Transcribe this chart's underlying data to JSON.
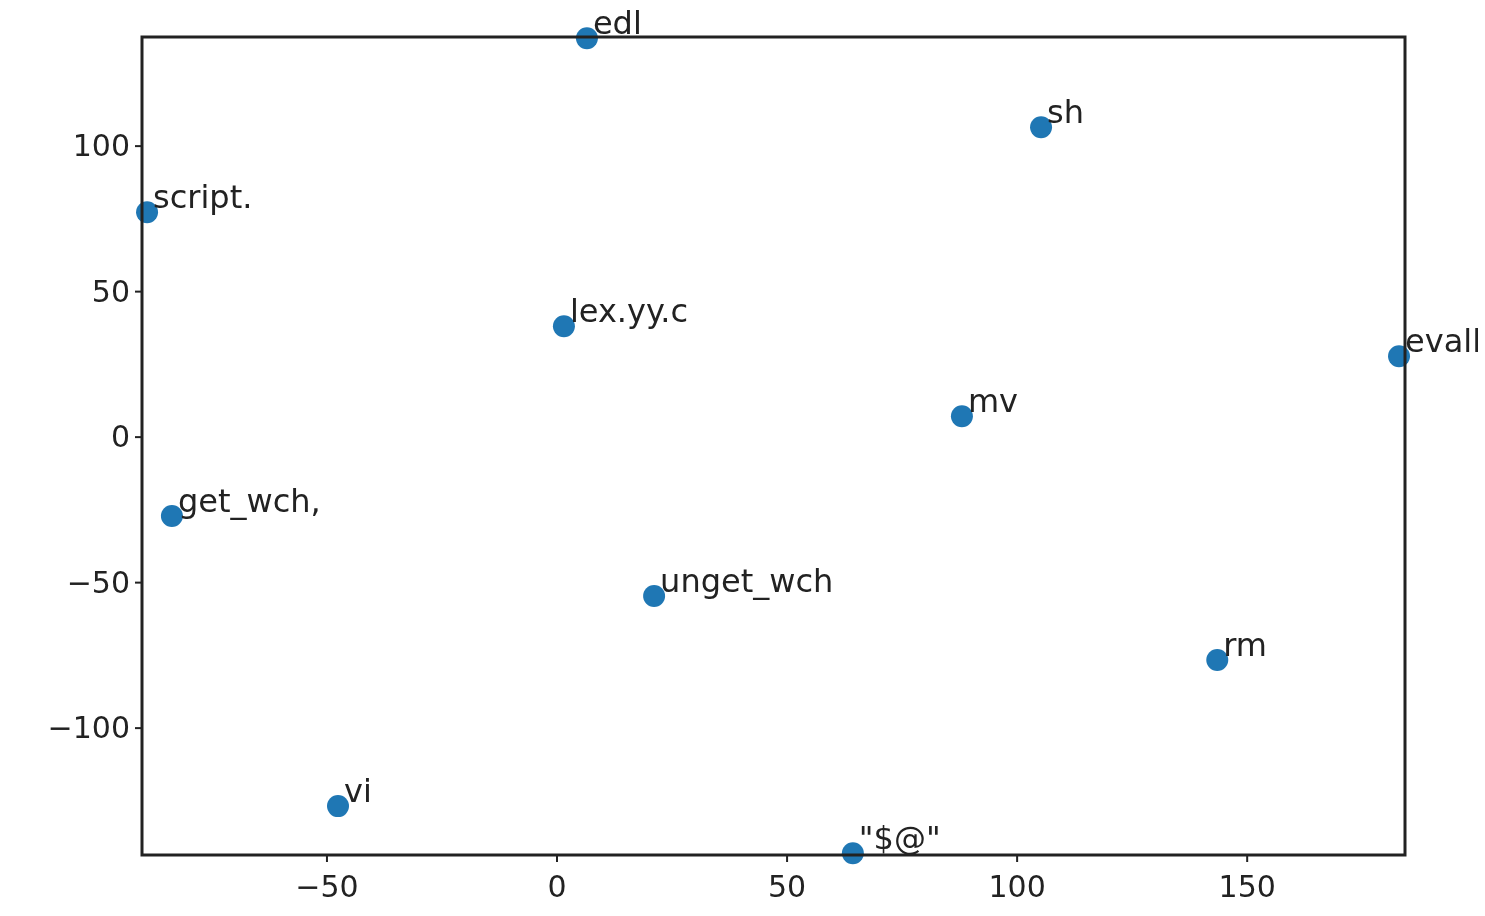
{
  "chart_data": {
    "type": "scatter",
    "marker": "circle",
    "grid": false,
    "x": [
      6.5,
      105.2,
      -89.1,
      1.5,
      183.0,
      88.0,
      -83.7,
      21.1,
      143.5,
      -47.6,
      64.3
    ],
    "series": [
      {
        "color": "#1f77b4",
        "values": [
          137.1,
          106.5,
          77.3,
          38.1,
          27.8,
          7.2,
          -27.1,
          -54.6,
          -76.6,
          -126.8,
          -143.0
        ]
      }
    ],
    "xlim": [
      -90.2,
      184.3
    ],
    "ylim": [
      -143.6,
      137.5
    ],
    "xticks": [
      {
        "value": -50,
        "label": "−50"
      },
      0,
      50,
      100,
      150
    ],
    "yticks": [
      {
        "value": -100,
        "label": "−100"
      },
      {
        "value": -50,
        "label": "−50"
      },
      0,
      50,
      100
    ],
    "annotations": [
      {
        "text": "edl",
        "x": 6.5,
        "y": 137.1
      },
      {
        "text": "sh",
        "x": 105.2,
        "y": 106.5
      },
      {
        "text": "script.",
        "x": -89.1,
        "y": 77.3
      },
      {
        "text": "lex.yy.c",
        "x": 1.5,
        "y": 38.1
      },
      {
        "text": "evall",
        "x": 183.0,
        "y": 27.8
      },
      {
        "text": "mv",
        "x": 88.0,
        "y": 7.2
      },
      {
        "text": "get_wch,",
        "x": -83.7,
        "y": -27.1
      },
      {
        "text": "unget_wch",
        "x": 21.1,
        "y": -54.6
      },
      {
        "text": "rm",
        "x": 143.5,
        "y": -76.6
      },
      {
        "text": "vi",
        "x": -47.6,
        "y": -126.8
      },
      {
        "text": "\"$@\"",
        "x": 64.3,
        "y": -143.0
      }
    ]
  }
}
